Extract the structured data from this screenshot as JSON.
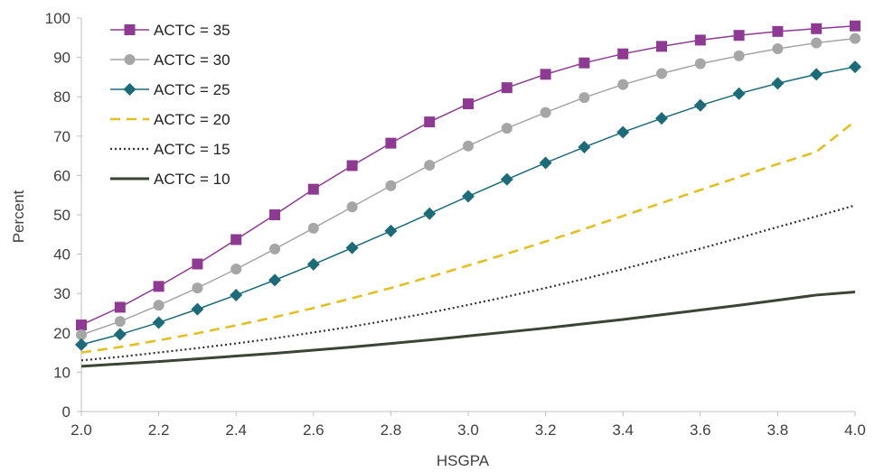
{
  "chart_data": {
    "type": "line",
    "xlabel": "HSGPA",
    "ylabel": "Percent",
    "xlim": [
      2.0,
      4.0
    ],
    "ylim": [
      0,
      100
    ],
    "x_ticks": [
      "2.0",
      "2.2",
      "2.4",
      "2.6",
      "2.8",
      "3.0",
      "3.2",
      "3.4",
      "3.6",
      "3.8",
      "4.0"
    ],
    "y_ticks": [
      "0",
      "10",
      "20",
      "30",
      "40",
      "50",
      "60",
      "70",
      "80",
      "90",
      "100"
    ],
    "grid": false,
    "legend_position": "top-left",
    "x": [
      2.0,
      2.1,
      2.2,
      2.3,
      2.4,
      2.5,
      2.6,
      2.7,
      2.8,
      2.9,
      3.0,
      3.1,
      3.2,
      3.3,
      3.4,
      3.5,
      3.6,
      3.7,
      3.8,
      3.9,
      4.0
    ],
    "series": [
      {
        "name": "ACTC = 35",
        "color": "#8e3a92",
        "style": "solid",
        "marker": "square",
        "values": [
          22,
          26.5,
          31.8,
          37.5,
          43.7,
          50,
          56.5,
          62.5,
          68.2,
          73.6,
          78.2,
          82.3,
          85.7,
          88.6,
          90.9,
          92.8,
          94.4,
          95.6,
          96.6,
          97.3,
          98
        ]
      },
      {
        "name": "ACTC = 30",
        "color": "#a6a6a6",
        "style": "solid",
        "marker": "circle",
        "values": [
          19.5,
          22.9,
          27,
          31.4,
          36.2,
          41.3,
          46.6,
          52,
          57.4,
          62.6,
          67.5,
          72,
          76,
          79.8,
          83.1,
          85.9,
          88.4,
          90.4,
          92.2,
          93.7,
          94.8
        ]
      },
      {
        "name": "ACTC = 25",
        "color": "#1b6b78",
        "style": "solid",
        "marker": "diamond",
        "values": [
          17,
          19.6,
          22.6,
          26,
          29.6,
          33.4,
          37.4,
          41.6,
          45.9,
          50.3,
          54.7,
          59,
          63.2,
          67.2,
          71,
          74.5,
          77.8,
          80.8,
          83.4,
          85.7,
          87.6
        ]
      },
      {
        "name": "ACTC = 20",
        "color": "#e3c020",
        "style": "dashed",
        "marker": "none",
        "values": [
          15,
          16.4,
          18.1,
          19.9,
          21.9,
          24,
          26.3,
          28.8,
          31.4,
          34.2,
          37.1,
          40.1,
          43.2,
          46.4,
          49.7,
          53,
          56.3,
          59.6,
          62.9,
          66,
          73.8
        ]
      },
      {
        "name": "ACTC = 15",
        "color": "#333333",
        "style": "dotted",
        "marker": "none",
        "values": [
          13,
          13.9,
          15,
          16.1,
          17.3,
          18.6,
          20.1,
          21.6,
          23.3,
          25.1,
          27.1,
          29.2,
          31.4,
          33.7,
          36.2,
          38.8,
          41.4,
          44.1,
          46.9,
          49.6,
          52.4
        ]
      },
      {
        "name": "ACTC = 10",
        "color": "#3a4535",
        "style": "solid",
        "marker": "none",
        "values": [
          11.5,
          12.1,
          12.7,
          13.4,
          14.1,
          14.8,
          15.6,
          16.4,
          17.3,
          18.2,
          19.2,
          20.2,
          21.2,
          22.3,
          23.4,
          24.6,
          25.8,
          27,
          28.3,
          29.6,
          30.4
        ]
      }
    ]
  }
}
